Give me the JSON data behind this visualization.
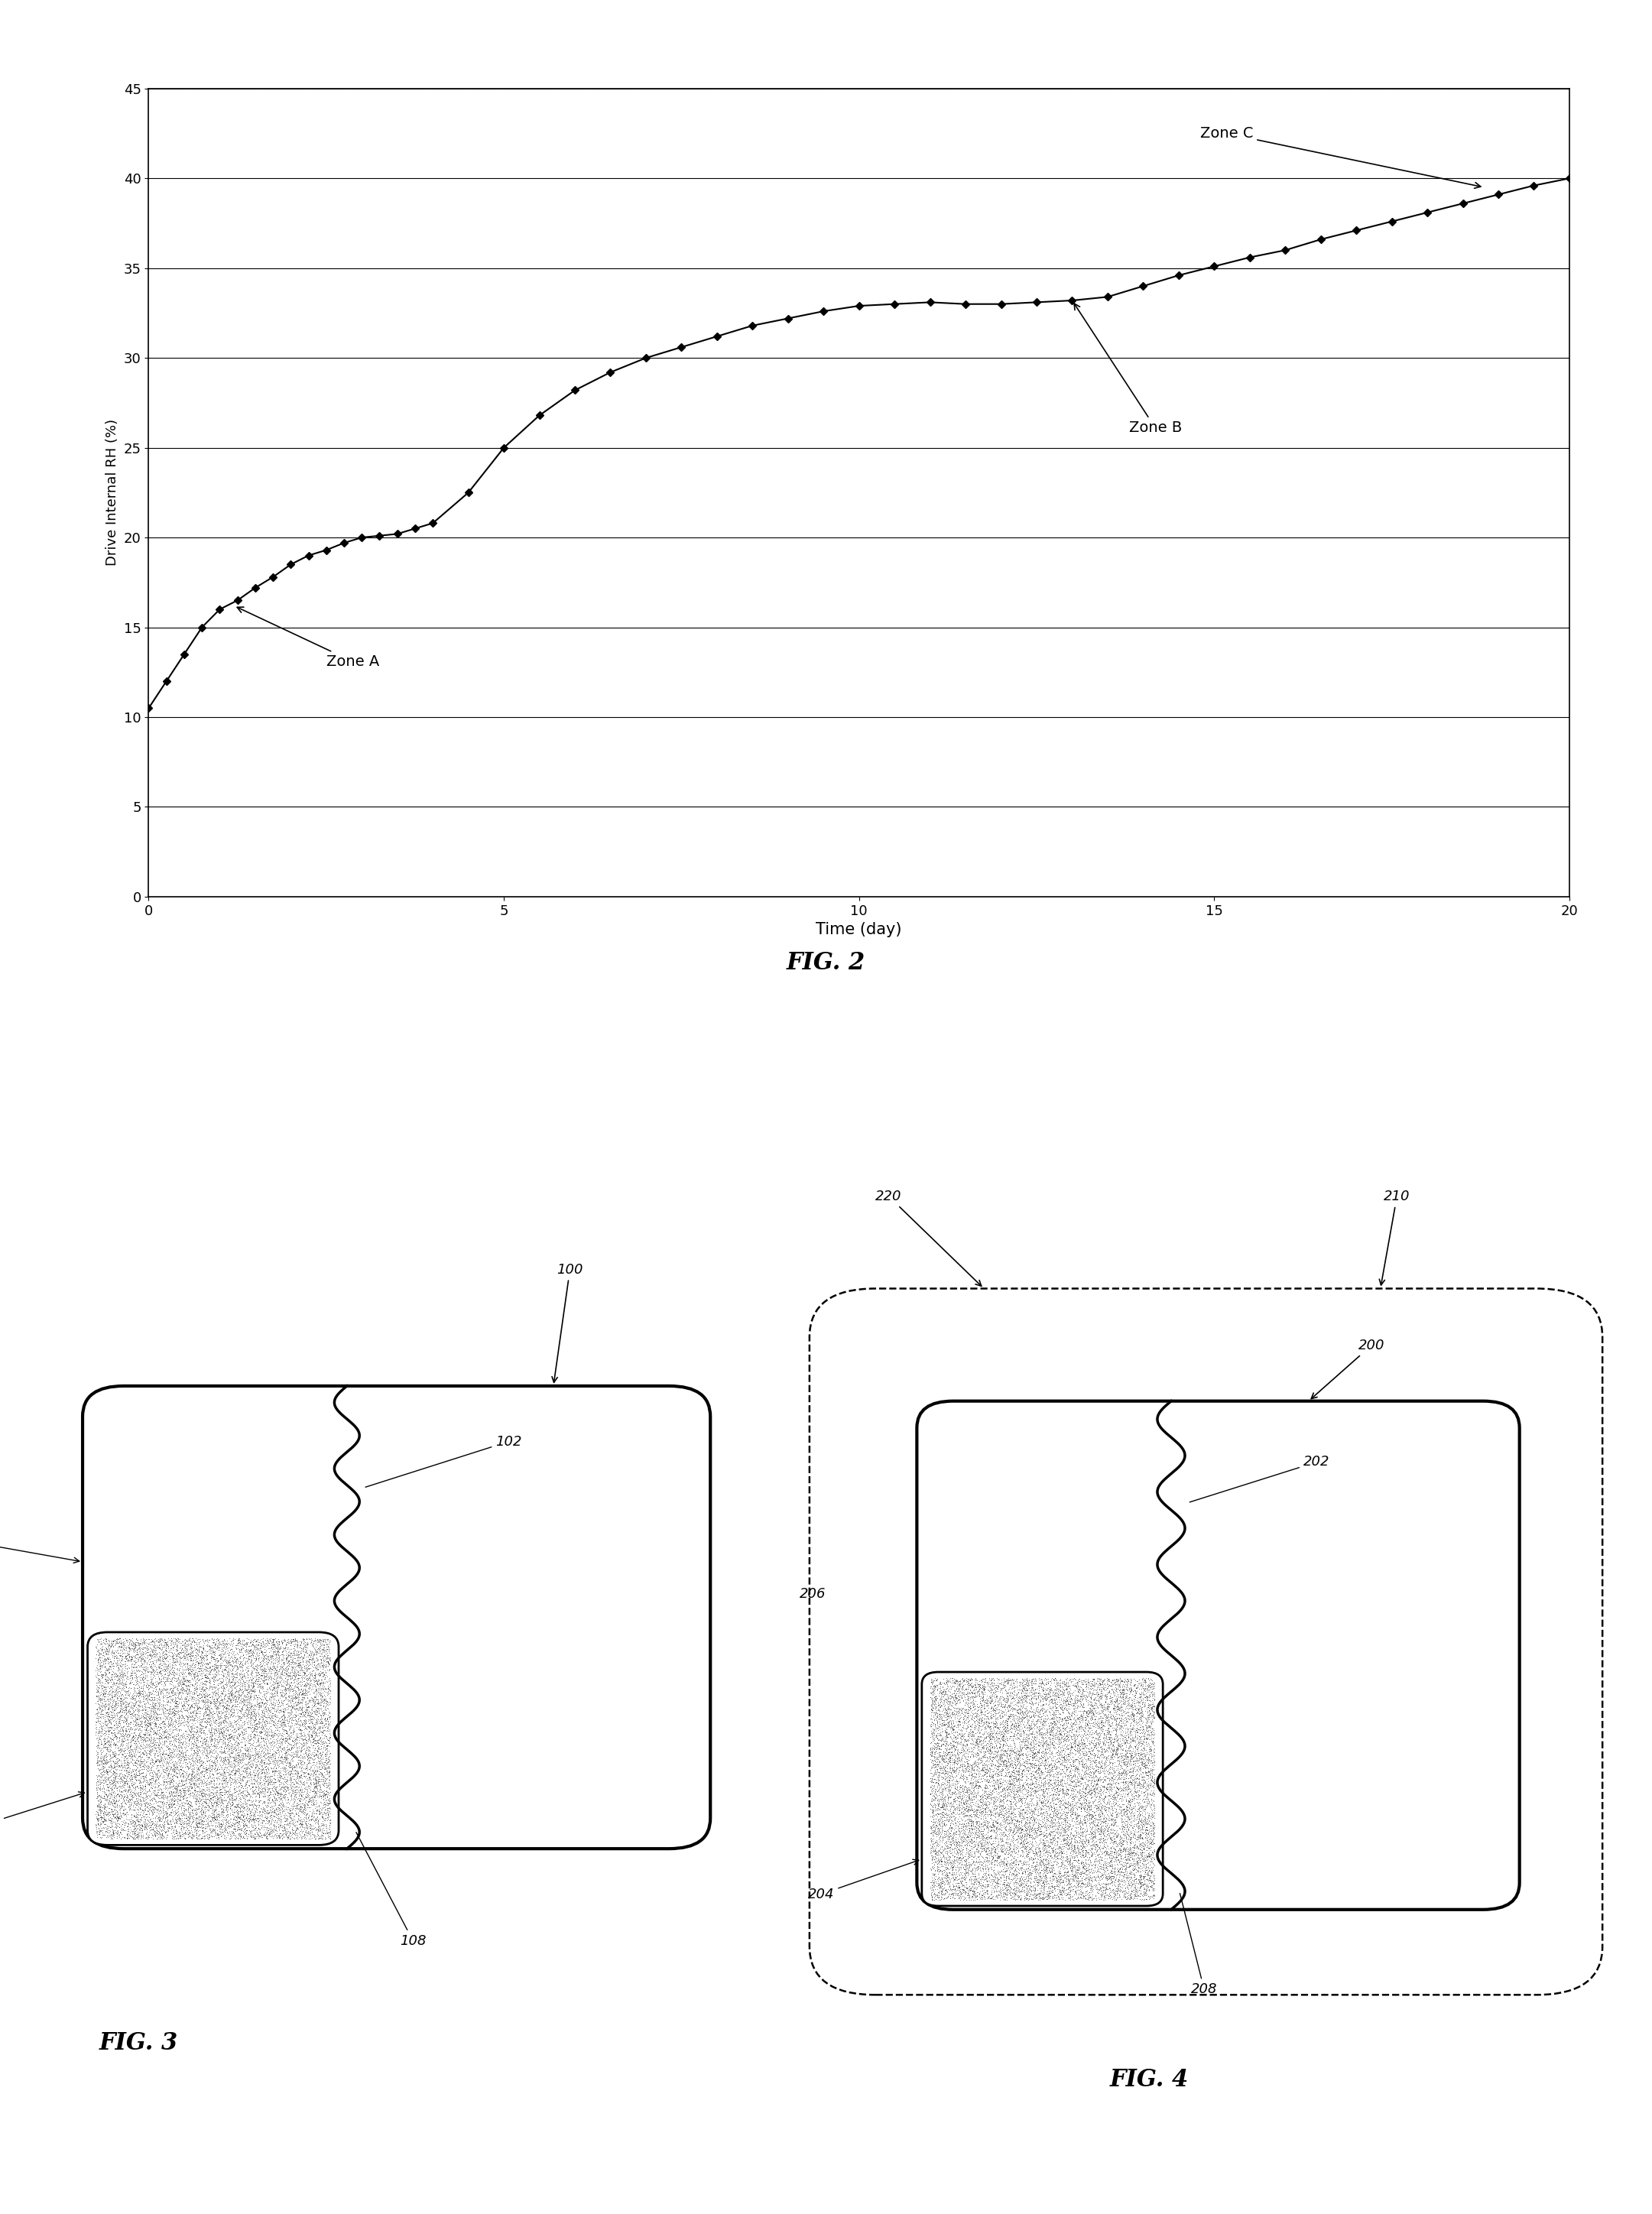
{
  "xlabel": "Time (day)",
  "ylabel": "Drive Internal RH (%)",
  "xlim": [
    0,
    20
  ],
  "ylim": [
    0,
    45
  ],
  "xticks": [
    0,
    5,
    10,
    15,
    20
  ],
  "yticks": [
    0,
    5,
    10,
    15,
    20,
    25,
    30,
    35,
    40,
    45
  ],
  "x_data": [
    0.0,
    0.25,
    0.5,
    0.75,
    1.0,
    1.25,
    1.5,
    1.75,
    2.0,
    2.25,
    2.5,
    2.75,
    3.0,
    3.25,
    3.5,
    3.75,
    4.0,
    4.5,
    5.0,
    5.5,
    6.0,
    6.5,
    7.0,
    7.5,
    8.0,
    8.5,
    9.0,
    9.5,
    10.0,
    10.5,
    11.0,
    11.5,
    12.0,
    12.5,
    13.0,
    13.5,
    14.0,
    14.5,
    15.0,
    15.5,
    16.0,
    16.5,
    17.0,
    17.5,
    18.0,
    18.5,
    19.0,
    19.5,
    20.0
  ],
  "y_data": [
    10.5,
    12.0,
    13.5,
    15.0,
    16.0,
    16.5,
    17.2,
    17.8,
    18.5,
    19.0,
    19.3,
    19.7,
    20.0,
    20.1,
    20.2,
    20.5,
    20.8,
    22.5,
    25.0,
    26.8,
    28.2,
    29.2,
    30.0,
    30.6,
    31.2,
    31.8,
    32.2,
    32.6,
    32.9,
    33.0,
    33.1,
    33.0,
    33.0,
    33.1,
    33.2,
    33.4,
    34.0,
    34.6,
    35.1,
    35.6,
    36.0,
    36.6,
    37.1,
    37.6,
    38.1,
    38.6,
    39.1,
    39.6,
    40.0
  ],
  "zone_a_text": "Zone A",
  "zone_b_text": "Zone B",
  "zone_c_text": "Zone C",
  "fig2_caption": "FIG. 2",
  "fig3_caption": "FIG. 3",
  "fig4_caption": "FIG. 4",
  "line_color": "black",
  "marker": "D",
  "marker_size": 5,
  "background_color": "white"
}
